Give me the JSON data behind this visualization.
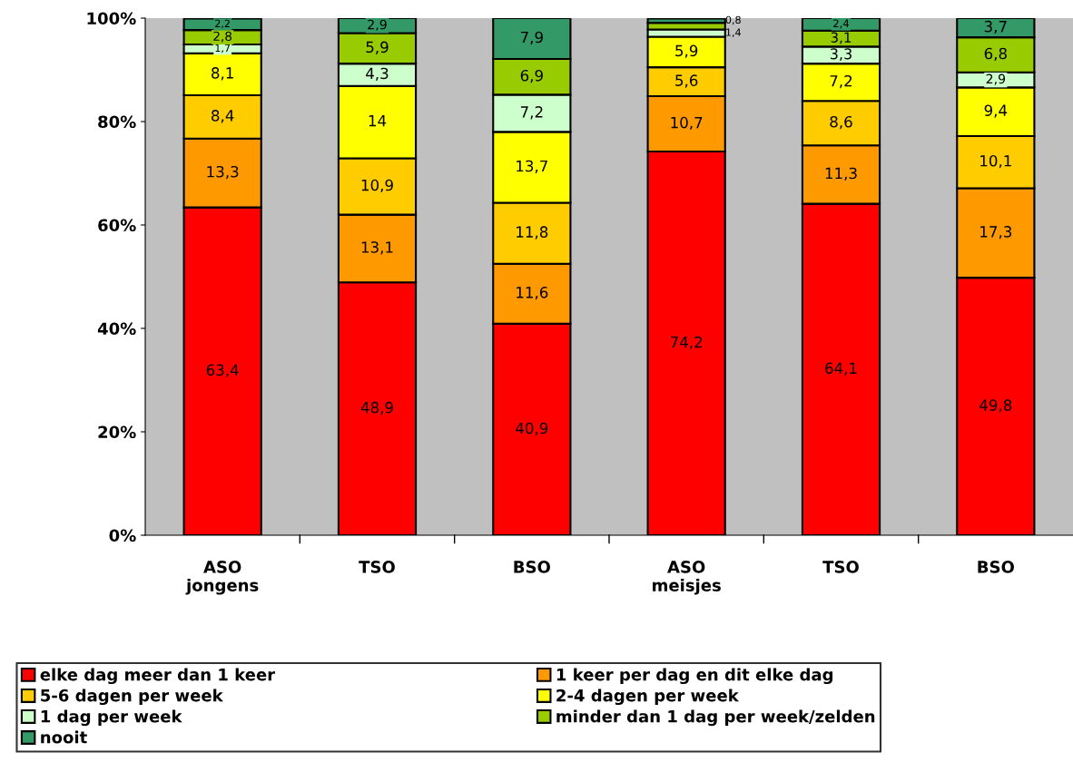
{
  "chart_data": {
    "type": "bar",
    "stacked": true,
    "legend": "bottom",
    "grid": false,
    "categories": [
      "ASO\njongens",
      "TSO",
      "BSO",
      "ASO\nmeisjes",
      "TSO",
      "BSO"
    ],
    "ylim": [
      0,
      100
    ],
    "yticks": [
      {
        "value": 0,
        "label": "0%"
      },
      {
        "value": 20,
        "label": "20%"
      },
      {
        "value": 40,
        "label": "40%"
      },
      {
        "value": 60,
        "label": "60%"
      },
      {
        "value": 80,
        "label": "80%"
      },
      {
        "value": 100,
        "label": "100%"
      }
    ],
    "series": [
      {
        "name": "elke dag meer dan 1 keer",
        "color": "#ff0000",
        "values": [
          63.4,
          48.9,
          40.9,
          74.2,
          64.1,
          49.8
        ],
        "value_labels": [
          "63,4",
          "48,9",
          "40,9",
          "74,2",
          "64,1",
          "49,8"
        ]
      },
      {
        "name": "1 keer per dag en dit elke dag",
        "color": "#ff9900",
        "values": [
          13.3,
          13.1,
          11.6,
          10.7,
          11.3,
          17.3
        ],
        "value_labels": [
          "13,3",
          "13,1",
          "11,6",
          "10,7",
          "11,3",
          "17,3"
        ]
      },
      {
        "name": "5-6 dagen per week",
        "color": "#ffcc00",
        "values": [
          8.4,
          10.9,
          11.8,
          5.6,
          8.6,
          10.1
        ],
        "value_labels": [
          "8,4",
          "10,9",
          "11,8",
          "5,6",
          "8,6",
          "10,1"
        ]
      },
      {
        "name": "2-4 dagen per week",
        "color": "#ffff00",
        "values": [
          8.1,
          14,
          13.7,
          5.9,
          7.2,
          9.4
        ],
        "value_labels": [
          "8,1",
          "14",
          "13,7",
          "5,9",
          "7,2",
          "9,4"
        ]
      },
      {
        "name": "1 dag per week",
        "color": "#ccffcc",
        "values": [
          1.7,
          4.3,
          7.2,
          1.4,
          3.3,
          2.9
        ],
        "value_labels": [
          "1,7",
          "4,3",
          "7,2",
          "1,4",
          "3,3",
          "2,9"
        ]
      },
      {
        "name": "minder dan 1 dag per week/zelden",
        "color": "#99cc00",
        "values": [
          2.8,
          5.9,
          6.9,
          1.3,
          3.1,
          6.8
        ],
        "value_labels": [
          "2,8",
          "5,9",
          "6,9",
          null,
          "3,1",
          "6,8"
        ]
      },
      {
        "name": "nooit",
        "color": "#339966",
        "values": [
          2.2,
          2.9,
          7.9,
          0.8,
          2.4,
          3.7
        ],
        "value_labels": [
          "2,2",
          "2,9",
          "7,9",
          "0,8",
          "2,4",
          "3,7"
        ]
      }
    ]
  }
}
